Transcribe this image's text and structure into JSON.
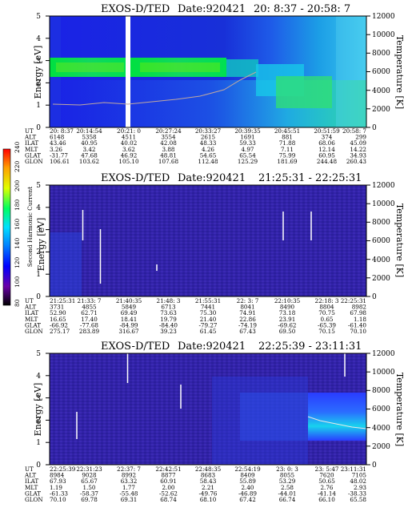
{
  "chart_data": [
    {
      "type": "heatmap",
      "title_prefix": "EXOS-D/TED",
      "date_text": "Date:920421",
      "time_range": "20: 8:37 - 20:58: 7",
      "ylabel": "Energy [eV]",
      "ylim": [
        0,
        5
      ],
      "yticks": [
        "0",
        "1",
        "2",
        "3",
        "4",
        "5"
      ],
      "ylabel_right": "Temperature [K]",
      "ylim_right": [
        0,
        12000
      ],
      "yticks_right": [
        "0",
        "2000",
        "4000",
        "6000",
        "8000",
        "10000",
        "12000"
      ],
      "table_rows": [
        {
          "label": "UT",
          "values": [
            "20: 8:37",
            "20:14:54",
            "20:21: 0",
            "20:27:24",
            "20:33:27",
            "20:39:35",
            "20:45:51",
            "20:51:59",
            "20:58: 7"
          ]
        },
        {
          "label": "ALT",
          "values": [
            "6148",
            "5358",
            "4511",
            "3554",
            "2615",
            "1691",
            "881",
            "374",
            "299"
          ]
        },
        {
          "label": "ILAT",
          "values": [
            "43.46",
            "40.95",
            "40.02",
            "42.08",
            "48.33",
            "59.33",
            "71.88",
            "68.06",
            "45.09"
          ]
        },
        {
          "label": "MLT",
          "values": [
            "3.26",
            "3.42",
            "3.62",
            "3.88",
            "4.26",
            "4.97",
            "7.11",
            "12.14",
            "14.22"
          ]
        },
        {
          "label": "GLAT",
          "values": [
            "-31.77",
            "47.68",
            "46.92",
            "48.81",
            "54.65",
            "65.54",
            "75.99",
            "60.95",
            "34.93"
          ]
        },
        {
          "label": "GLON",
          "values": [
            "106.61",
            "103.62",
            "105.10",
            "107.68",
            "112.48",
            "125.29",
            "181.69",
            "244.48",
            "260.43"
          ]
        }
      ]
    },
    {
      "type": "heatmap",
      "title_prefix": "EXOS-D/TED",
      "date_text": "Date:920421",
      "time_range": "21:25:31 - 22:25:31",
      "ylabel": "Energy [eV]",
      "ylim": [
        0,
        5
      ],
      "yticks": [
        "0",
        "1",
        "2",
        "3",
        "4",
        "5"
      ],
      "ylabel_right": "Temperature [K]",
      "ylim_right": [
        0,
        12000
      ],
      "yticks_right": [
        "0",
        "2000",
        "4000",
        "6000",
        "8000",
        "10000",
        "12000"
      ],
      "table_rows": [
        {
          "label": "UT",
          "values": [
            "21:25:31",
            "21:33: 7",
            "21:40:35",
            "21:48: 3",
            "21:55:31",
            "22: 3: 7",
            "22:10:35",
            "22:18: 3",
            "22:25:31"
          ]
        },
        {
          "label": "ALT",
          "values": [
            "3731",
            "4855",
            "5849",
            "6713",
            "7441",
            "8041",
            "8490",
            "8804",
            "8982"
          ]
        },
        {
          "label": "ILAT",
          "values": [
            "52.90",
            "62.71",
            "69.49",
            "73.63",
            "75.30",
            "74.91",
            "73.18",
            "70.75",
            "67.98"
          ]
        },
        {
          "label": "MLT",
          "values": [
            "16.65",
            "17.40",
            "18.41",
            "19.79",
            "21.40",
            "22.86",
            "23.91",
            "0.65",
            "1.18"
          ]
        },
        {
          "label": "GLAT",
          "values": [
            "-66.92",
            "-77.68",
            "-84.99",
            "-84.40",
            "-79.27",
            "-74.19",
            "-69.62",
            "-65.39",
            "-61.40"
          ]
        },
        {
          "label": "GLON",
          "values": [
            "275.17",
            "283.89",
            "316.67",
            "39.23",
            "61.45",
            "67.43",
            "69.50",
            "70.15",
            "70.10"
          ]
        }
      ]
    },
    {
      "type": "heatmap",
      "title_prefix": "EXOS-D/TED",
      "date_text": "Date:920421",
      "time_range": "22:25:39 - 23:11:31",
      "ylabel": "Energy [eV]",
      "ylim": [
        0,
        5
      ],
      "yticks": [
        "0",
        "1",
        "2",
        "3",
        "4",
        "5"
      ],
      "ylabel_right": "Temperature [K]",
      "ylim_right": [
        0,
        12000
      ],
      "yticks_right": [
        "0",
        "2000",
        "4000",
        "6000",
        "8000",
        "10000",
        "12000"
      ],
      "table_rows": [
        {
          "label": "UT",
          "values": [
            "22:25:39",
            "22:31:23",
            "22:37: 7",
            "22:42:51",
            "22:48:35",
            "22:54:19",
            "23: 0: 3",
            "23: 5:47",
            "23:11:31"
          ]
        },
        {
          "label": "ALT",
          "values": [
            "8984",
            "9028",
            "8992",
            "8877",
            "8683",
            "8409",
            "8055",
            "7620",
            "7105"
          ]
        },
        {
          "label": "ILAT",
          "values": [
            "67.93",
            "65.67",
            "63.32",
            "60.91",
            "58.43",
            "55.89",
            "53.29",
            "50.65",
            "48.02"
          ]
        },
        {
          "label": "MLT",
          "values": [
            "1.19",
            "1.50",
            "1.77",
            "2.00",
            "2.21",
            "2.40",
            "2.58",
            "2.76",
            "2.93"
          ]
        },
        {
          "label": "GLAT",
          "values": [
            "-61.33",
            "-58.37",
            "-55.48",
            "-52.62",
            "-49.76",
            "-46.89",
            "-44.01",
            "-41.14",
            "-38.33"
          ]
        },
        {
          "label": "GLON",
          "values": [
            "70.10",
            "69.78",
            "69.31",
            "68.74",
            "68.10",
            "67.42",
            "66.74",
            "66.10",
            "65.58"
          ]
        }
      ]
    }
  ],
  "colorbar": {
    "label": "Second Harmonic Current",
    "ticks": [
      "80",
      "100",
      "120",
      "140",
      "160",
      "180",
      "200",
      "220",
      "240"
    ],
    "vmin": 80,
    "vmax": 240,
    "stops": [
      "#000000",
      "#6a00a8",
      "#0000ff",
      "#0080ff",
      "#00e0ff",
      "#00ff60",
      "#e0ff00",
      "#ffa000",
      "#ff0000"
    ]
  }
}
